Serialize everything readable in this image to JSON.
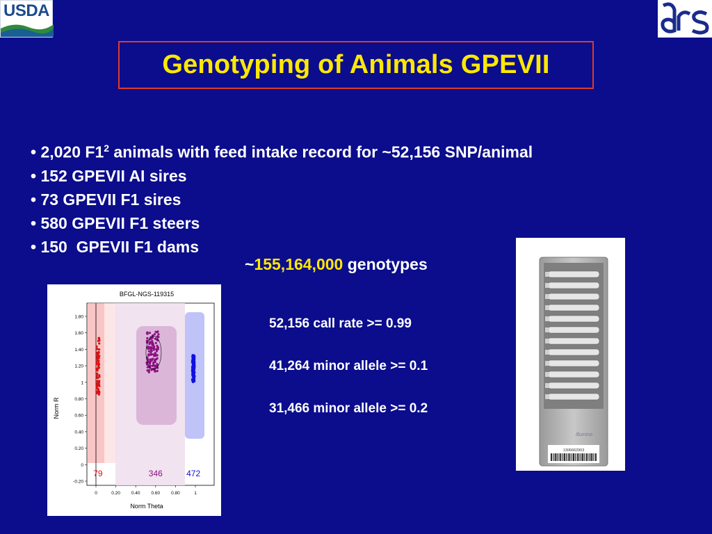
{
  "logos": {
    "left_text": "USDA",
    "right_text": "ars"
  },
  "title": "Genotyping of Animals GPEVII",
  "bullets": [
    {
      "marker": "•",
      "before_sup": "2,020 F1",
      "sup": "2",
      "after_sup": " animals with feed intake record for ~52,156 SNP/animal"
    },
    {
      "marker": "•",
      "text": "152 GPEVII AI sires"
    },
    {
      "marker": "•",
      "text": "73 GPEVII F1 sires"
    },
    {
      "marker": "•",
      "text": "580 GPEVII F1 steers"
    },
    {
      "marker": "•",
      "text": "150  GPEVII F1 dams"
    }
  ],
  "total": {
    "prefix": "~",
    "number": "155,164,000",
    "suffix": " genotypes"
  },
  "stats": [
    "52,156 call rate >= 0.99",
    "41,264 minor allele >= 0.1",
    "31,466 minor allele >= 0.2"
  ],
  "chip": {
    "brand": "Illumina",
    "barcode_number": "1306662903"
  },
  "chart_data": {
    "type": "scatter",
    "title": "BFGL-NGS-119315",
    "xlabel": "Norm Theta",
    "ylabel": "Norm R",
    "xlim": [
      0,
      1
    ],
    "ylim": [
      -0.2,
      1.8
    ],
    "x_ticks": [
      "0",
      "0.20",
      "0.40",
      "0.60",
      "0.80",
      "1"
    ],
    "y_ticks": [
      "-0.20",
      "0",
      "0.20",
      "0.40",
      "0.60",
      "0.80",
      "1",
      "1.20",
      "1.40",
      "1.60",
      "1.80"
    ],
    "clusters": [
      {
        "label": "79",
        "color": "#e01010",
        "theta_center": 0.02,
        "theta_spread": 0.015,
        "r_min": 0.85,
        "r_max": 1.55,
        "count": 79
      },
      {
        "label": "346",
        "color": "#8a1080",
        "theta_center": 0.57,
        "theta_spread": 0.06,
        "r_min": 1.12,
        "r_max": 1.62,
        "count": 346
      },
      {
        "label": "472",
        "color": "#1010e0",
        "theta_center": 0.98,
        "theta_spread": 0.012,
        "r_min": 1.0,
        "r_max": 1.34,
        "count": 472
      }
    ],
    "grid": false
  }
}
